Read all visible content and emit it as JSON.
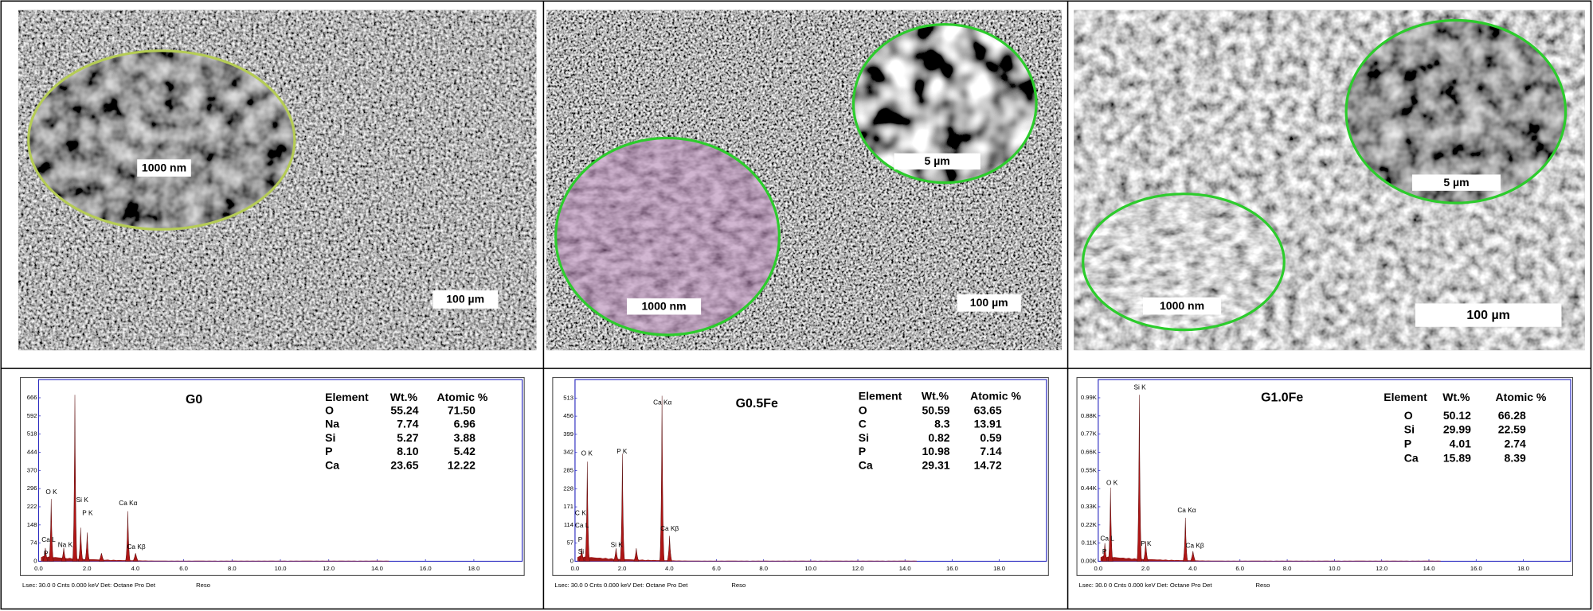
{
  "panels": [
    {
      "sem": {
        "labels": [
          "1000 nm"
        ],
        "scale_bar": "100 µm"
      },
      "eds": {
        "title": "G0",
        "table": {
          "header": [
            "Element",
            "Wt.%",
            "Atomic %"
          ],
          "rows": [
            [
              "O",
              "55.24",
              "71.50"
            ],
            [
              "Na",
              "7.74",
              "6.96"
            ],
            [
              "Si",
              "5.27",
              "3.88"
            ],
            [
              "P",
              "8.10",
              "5.42"
            ],
            [
              "Ca",
              "23.65",
              "12.22"
            ]
          ]
        },
        "ylim": [
          0,
          740
        ],
        "yticks": [
          0,
          74,
          148,
          222,
          296,
          370,
          444,
          518,
          592,
          666
        ],
        "xlim": [
          0,
          20
        ],
        "xticks": [
          {
            "value": 0,
            "label": "0.0"
          },
          {
            "value": 2,
            "label": "2.0"
          },
          {
            "value": 4,
            "label": "4.0"
          },
          {
            "value": 6,
            "label": "6.0"
          },
          {
            "value": 8,
            "label": "8.0"
          },
          {
            "value": 10,
            "label": "10.0"
          },
          {
            "value": 12,
            "label": "12.0"
          },
          {
            "value": 14,
            "label": "14.0"
          },
          {
            "value": 16,
            "label": "16.0"
          },
          {
            "value": 18,
            "label": "18.0"
          }
        ],
        "peaks": [
          {
            "kev": 0.28,
            "counts": 54
          },
          {
            "kev": 0.52,
            "counts": 254
          },
          {
            "kev": 1.04,
            "counts": 54
          },
          {
            "kev": 1.5,
            "counts": 678
          },
          {
            "kev": 1.74,
            "counts": 137
          },
          {
            "kev": 2.01,
            "counts": 117
          },
          {
            "kev": 2.6,
            "counts": 33
          },
          {
            "kev": 3.69,
            "counts": 204
          },
          {
            "kev": 4.01,
            "counts": 33
          }
        ],
        "peak_labels": [
          "O  K",
          "Ca L",
          "P",
          "Na K",
          "Si K",
          "P  K",
          "Ca Kα",
          "Ca Kβ"
        ],
        "footer": "Lsec: 30.0  0 Cnts  0.000 keV  Det: Octane Pro Det",
        "footer_reso": "Reso"
      }
    },
    {
      "sem": {
        "labels": [
          "5 µm",
          "1000 nm"
        ],
        "scale_bar": "100 µm"
      },
      "eds": {
        "title": "G0.5Fe",
        "table": {
          "header": [
            "Element",
            "Wt.%",
            "Atomic %"
          ],
          "rows": [
            [
              "O",
              "50.59",
              "63.65"
            ],
            [
              "C",
              "8.3",
              "13.91"
            ],
            [
              "Si",
              "0.82",
              "0.59"
            ],
            [
              "P",
              "10.98",
              "7.14"
            ],
            [
              "Ca",
              "29.31",
              "14.72"
            ]
          ]
        },
        "ylim": [
          0,
          571
        ],
        "yticks": [
          0,
          57,
          114,
          171,
          228,
          285,
          342,
          399,
          456,
          513
        ],
        "xlim": [
          0,
          20
        ],
        "xticks": [
          {
            "value": 0,
            "label": "0.0"
          },
          {
            "value": 2,
            "label": "2.0"
          },
          {
            "value": 4,
            "label": "4.0"
          },
          {
            "value": 6,
            "label": "6.0"
          },
          {
            "value": 8,
            "label": "8.0"
          },
          {
            "value": 10,
            "label": "10.0"
          },
          {
            "value": 12,
            "label": "12.0"
          },
          {
            "value": 14,
            "label": "14.0"
          },
          {
            "value": 16,
            "label": "16.0"
          },
          {
            "value": 18,
            "label": "18.0"
          }
        ],
        "peaks": [
          {
            "kev": 0.28,
            "counts": 41
          },
          {
            "kev": 0.52,
            "counts": 313
          },
          {
            "kev": 1.74,
            "counts": 41
          },
          {
            "kev": 2.01,
            "counts": 338
          },
          {
            "kev": 2.6,
            "counts": 41
          },
          {
            "kev": 3.69,
            "counts": 520
          },
          {
            "kev": 4.01,
            "counts": 80
          }
        ],
        "peak_labels": [
          "O  K",
          "C  K",
          "Ca L",
          "P",
          "Si",
          "Si K",
          "P  K",
          "Ca Kα",
          "Ca Kβ"
        ],
        "footer": "Lsec: 30.0  0 Cnts  0.000 keV  Det: Octane Pro Det",
        "footer_reso": "Reso"
      }
    },
    {
      "sem": {
        "labels": [
          "5 µm",
          "1000 nm"
        ],
        "scale_bar": "100 µm"
      },
      "eds": {
        "title": "G1.0Fe",
        "table": {
          "header": [
            "Element",
            "Wt.%",
            "Atomic %"
          ],
          "rows": [
            [
              "O",
              "50.12",
              "66.28"
            ],
            [
              "Si",
              "29.99",
              "22.59"
            ],
            [
              "P",
              "4.01",
              "2.74"
            ],
            [
              "Ca",
              "15.89",
              "8.39"
            ]
          ]
        },
        "ylim": [
          0,
          1100
        ],
        "yticks": [
          {
            "value": 0,
            "label": "0.00K"
          },
          {
            "value": 110,
            "label": "0.11K"
          },
          {
            "value": 220,
            "label": "0.22K"
          },
          {
            "value": 330,
            "label": "0.33K"
          },
          {
            "value": 440,
            "label": "0.44K"
          },
          {
            "value": 550,
            "label": "0.55K"
          },
          {
            "value": 660,
            "label": "0.66K"
          },
          {
            "value": 770,
            "label": "0.77K"
          },
          {
            "value": 880,
            "label": "0.88K"
          },
          {
            "value": 990,
            "label": "0.99K"
          }
        ],
        "xlim": [
          0,
          20
        ],
        "xticks": [
          {
            "value": 0,
            "label": "0.0"
          },
          {
            "value": 2,
            "label": "2.0"
          },
          {
            "value": 4,
            "label": "4.0"
          },
          {
            "value": 6,
            "label": "6.0"
          },
          {
            "value": 8,
            "label": "8.0"
          },
          {
            "value": 10,
            "label": "10.0"
          },
          {
            "value": 12,
            "label": "12.0"
          },
          {
            "value": 14,
            "label": "14.0"
          },
          {
            "value": 16,
            "label": "16.0"
          },
          {
            "value": 18,
            "label": "18.0"
          }
        ],
        "peaks": [
          {
            "kev": 0.28,
            "counts": 110
          },
          {
            "kev": 0.52,
            "counts": 446
          },
          {
            "kev": 1.74,
            "counts": 1008
          },
          {
            "kev": 2.01,
            "counts": 122
          },
          {
            "kev": 3.69,
            "counts": 263
          },
          {
            "kev": 4.01,
            "counts": 61
          }
        ],
        "peak_labels": [
          "O  K",
          "Ca L",
          "P",
          "Si K",
          "P  K",
          "Ca Kα",
          "Ca Kβ"
        ],
        "footer": "Lsec: 30.0  0 Cnts  0.000 keV  Det: Octane Pro Det",
        "footer_reso": "Reso"
      }
    }
  ]
}
